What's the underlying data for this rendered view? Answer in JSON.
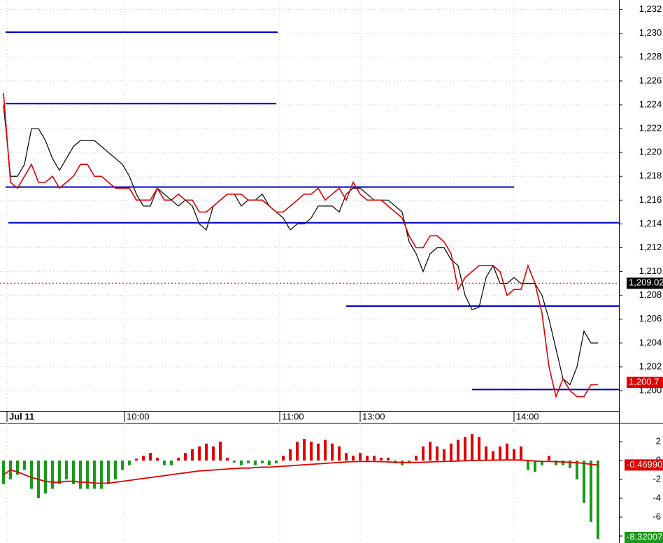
{
  "chart_data": [
    {
      "type": "price",
      "x": [
        0,
        1,
        2,
        3,
        4,
        5,
        6,
        7,
        8,
        9,
        10,
        11,
        12,
        13,
        14,
        15,
        16,
        17,
        18,
        19,
        20,
        21,
        22,
        23,
        24,
        25,
        26,
        27,
        28,
        29,
        30,
        31,
        32,
        33,
        34,
        35,
        36,
        37,
        38,
        39,
        40,
        41,
        42,
        43,
        44,
        45,
        46,
        47,
        48,
        49,
        50,
        51,
        52,
        53,
        54,
        55,
        56,
        57,
        58,
        59,
        60,
        61,
        62,
        63,
        64,
        65,
        66,
        67,
        68,
        69,
        70,
        71,
        72,
        73,
        74,
        75,
        76,
        77,
        78,
        79,
        80,
        81,
        82,
        83,
        84,
        85
      ],
      "xlim": [
        -0.5,
        88
      ],
      "xticks": [
        {
          "value": 0.5,
          "label": "Jul 11"
        },
        {
          "value": 17.3,
          "label": "10:00"
        },
        {
          "value": 39.5,
          "label": "11:00"
        },
        {
          "value": 51,
          "label": "13:00"
        },
        {
          "value": 73,
          "label": "14:00"
        }
      ],
      "ylim": [
        1198.3,
        1232.8
      ],
      "yticks": [
        {
          "value": 1232,
          "label": "1,232"
        },
        {
          "value": 1230,
          "label": "1,230"
        },
        {
          "value": 1228,
          "label": "1,228"
        },
        {
          "value": 1226,
          "label": "1,226"
        },
        {
          "value": 1224,
          "label": "1,224"
        },
        {
          "value": 1222,
          "label": "1,222"
        },
        {
          "value": 1220,
          "label": "1,220"
        },
        {
          "value": 1218,
          "label": "1,218"
        },
        {
          "value": 1216,
          "label": "1,216"
        },
        {
          "value": 1214,
          "label": "1,214"
        },
        {
          "value": 1212,
          "label": "1,212"
        },
        {
          "value": 1210,
          "label": "1,210"
        },
        {
          "value": 1208,
          "label": "1,208"
        },
        {
          "value": 1206,
          "label": "1,206"
        },
        {
          "value": 1204,
          "label": "1,204"
        },
        {
          "value": 1202,
          "label": "1,202"
        },
        {
          "value": 1200,
          "label": "1,200"
        }
      ],
      "grid": true,
      "series": [
        {
          "color": "#000000",
          "values": [
            1224,
            1218,
            1218,
            1219,
            1222,
            1222,
            1221,
            1219.5,
            1218.5,
            1219.5,
            1220.5,
            1221,
            1221,
            1221,
            1220.5,
            1220,
            1219.5,
            1219,
            1218,
            1216.5,
            1215.5,
            1215.5,
            1217,
            1216.5,
            1216,
            1215.5,
            1216,
            1215.5,
            1214,
            1213.5,
            1215.5,
            1216,
            1216.5,
            1216.5,
            1215.5,
            1216,
            1216,
            1216.5,
            1215.5,
            1215,
            1214.5,
            1213.5,
            1214,
            1214,
            1214.5,
            1215.5,
            1215.5,
            1215.5,
            1215,
            1216.5,
            1217,
            1217,
            1216.5,
            1216,
            1216,
            1216,
            1215.5,
            1215,
            1212.5,
            1211.5,
            1210,
            1211.5,
            1212,
            1212,
            1211,
            1210.5,
            1208,
            1206.8,
            1207,
            1209.5,
            1210.5,
            1209,
            1209,
            1209.5,
            1209,
            1209,
            1209,
            1208,
            1206,
            1203.5,
            1201,
            1200.5,
            1202,
            1205,
            1204,
            1204
          ]
        },
        {
          "color": "#e00000",
          "values": [
            1225,
            1217.5,
            1217,
            1218,
            1219,
            1217.5,
            1217.5,
            1218,
            1217,
            1217.5,
            1218,
            1219,
            1219,
            1218,
            1218,
            1217.5,
            1217,
            1217,
            1217,
            1216,
            1216,
            1216,
            1217,
            1216,
            1216,
            1216.5,
            1216,
            1216,
            1215,
            1215,
            1215.5,
            1216,
            1216.5,
            1216.5,
            1216.5,
            1216,
            1216,
            1216,
            1215.5,
            1215,
            1215,
            1215.5,
            1216,
            1216.5,
            1216.5,
            1217,
            1216,
            1216.5,
            1217,
            1216,
            1217.5,
            1216.5,
            1216,
            1216,
            1216,
            1215.5,
            1215,
            1214.5,
            1213,
            1212,
            1212,
            1213,
            1213,
            1212.5,
            1211.5,
            1208.5,
            1209.5,
            1210,
            1210.5,
            1210.5,
            1210.5,
            1210,
            1208,
            1208.5,
            1208.5,
            1210.5,
            1209,
            1206.5,
            1202,
            1199.5,
            1201,
            1200,
            1199.5,
            1199.5,
            1200.5,
            1200.5
          ]
        }
      ],
      "levels": [
        {
          "value": 1230.1,
          "from": 0.3,
          "to": 39.2,
          "color": "#0000cc"
        },
        {
          "value": 1224.1,
          "from": 0.3,
          "to": 39,
          "color": "#0000cc"
        },
        {
          "value": 1217.1,
          "from": 0.3,
          "to": 73,
          "color": "#0000cc"
        },
        {
          "value": 1214.1,
          "from": 0.7,
          "to": 88,
          "color": "#0000cc"
        },
        {
          "value": 1207.1,
          "from": 49,
          "to": 88,
          "color": "#0000cc"
        },
        {
          "value": 1200.1,
          "from": 67,
          "to": 88,
          "color": "#0000cc"
        }
      ],
      "markers": [
        {
          "value": 1209.02,
          "label": "1,209.02",
          "color": "#000000",
          "line": true
        },
        {
          "value": 1200.7,
          "label": "1,200.7",
          "color": "#e00000",
          "line": false
        }
      ]
    },
    {
      "type": "histogram",
      "ylim": [
        -8.74,
        4
      ],
      "yticks": [
        2,
        0,
        -2,
        -4,
        -6,
        -8
      ],
      "positive_color": "#e00000",
      "negative_color": "#1a9a1a",
      "values": [
        -2.5,
        -2,
        -1.5,
        -1,
        -3,
        -4,
        -3.5,
        -3,
        -2.5,
        -2,
        -2.5,
        -3,
        -3,
        -3,
        -3,
        -2.5,
        -2,
        -1,
        -0.5,
        0.2,
        0.5,
        0.8,
        0.3,
        -0.5,
        -0.5,
        0.3,
        0.8,
        1.2,
        1.5,
        1.8,
        1.5,
        2,
        0.3,
        -0.2,
        -0.5,
        -0.3,
        -0.5,
        -0.3,
        -0.5,
        -0.3,
        0.5,
        1.2,
        2,
        2.3,
        2,
        1.8,
        2.2,
        1.8,
        1.5,
        0.8,
        0.5,
        0.8,
        0.5,
        0.5,
        0.3,
        0.3,
        -0.3,
        -0.5,
        -0.3,
        0.5,
        1.5,
        2,
        1.5,
        1.2,
        1.8,
        2.2,
        2.5,
        2.8,
        2.5,
        1.5,
        1,
        1.5,
        1.8,
        1.2,
        1.5,
        -1,
        -1.2,
        -0.5,
        0.5,
        -0.5,
        -0.5,
        -0.8,
        -2,
        -4.5,
        -6.5,
        -8.32007
      ],
      "signal": {
        "color": "#e00000",
        "values": [
          -1.5,
          -1,
          -1.2,
          -1.5,
          -1.8,
          -2,
          -2.2,
          -2.3,
          -2.3,
          -2.2,
          -2.2,
          -2.3,
          -2.3,
          -2.4,
          -2.4,
          -2.4,
          -2.3,
          -2.2,
          -2.1,
          -2,
          -1.9,
          -1.8,
          -1.7,
          -1.6,
          -1.5,
          -1.4,
          -1.3,
          -1.2,
          -1.1,
          -1.05,
          -1,
          -0.95,
          -0.9,
          -0.85,
          -0.8,
          -0.8,
          -0.75,
          -0.7,
          -0.7,
          -0.65,
          -0.6,
          -0.55,
          -0.5,
          -0.45,
          -0.4,
          -0.35,
          -0.3,
          -0.25,
          -0.2,
          -0.15,
          -0.12,
          -0.1,
          -0.1,
          -0.1,
          -0.12,
          -0.15,
          -0.18,
          -0.2,
          -0.2,
          -0.2,
          -0.18,
          -0.15,
          -0.12,
          -0.1,
          -0.08,
          -0.05,
          -0.03,
          0,
          0.02,
          0.03,
          0.04,
          0.05,
          0.06,
          0.06,
          0.05,
          0,
          -0.05,
          -0.1,
          -0.1,
          -0.12,
          -0.15,
          -0.18,
          -0.22,
          -0.3,
          -0.4,
          -0.4699
        ]
      },
      "markers": [
        {
          "value": -0.4699,
          "label": "-0.46990",
          "color": "#e00000"
        },
        {
          "value": -8.32007,
          "label": "-8.32007",
          "color": "#1a9a1a"
        }
      ]
    }
  ]
}
